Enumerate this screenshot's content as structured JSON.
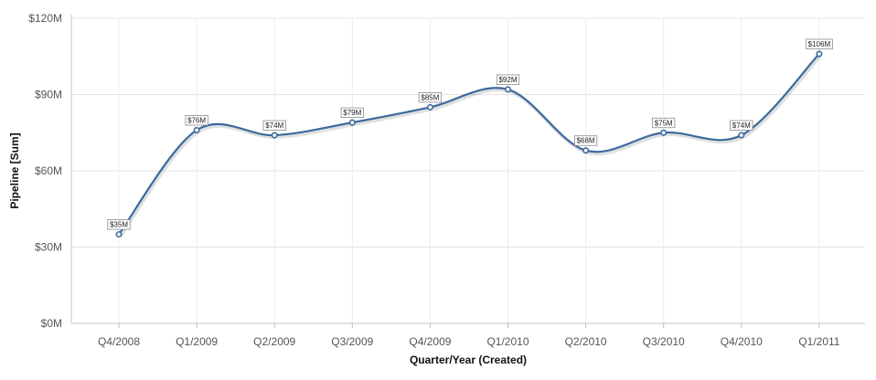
{
  "chart_data": {
    "type": "line",
    "xlabel": "Quarter/Year (Created)",
    "ylabel": "Pipeline [Sum]",
    "categories": [
      "Q4/2008",
      "Q1/2009",
      "Q2/2009",
      "Q3/2009",
      "Q4/2009",
      "Q1/2010",
      "Q2/2010",
      "Q3/2010",
      "Q4/2010",
      "Q1/2011"
    ],
    "series": [
      {
        "values": [
          35,
          76,
          74,
          79,
          85,
          92,
          68,
          75,
          74,
          106
        ],
        "labels": [
          "$35M",
          "$76M",
          "$74M",
          "$79M",
          "$85M",
          "$92M",
          "$68M",
          "$75M",
          "$74M",
          "$106M"
        ]
      }
    ],
    "y_ticks": [
      0,
      30,
      60,
      90,
      120
    ],
    "y_tick_labels": [
      "$0M",
      "$30M",
      "$60M",
      "$90M",
      "$120M"
    ],
    "ylim": [
      0,
      120
    ],
    "grid": true,
    "line_color": "#3d6a9e",
    "smooth": true
  }
}
